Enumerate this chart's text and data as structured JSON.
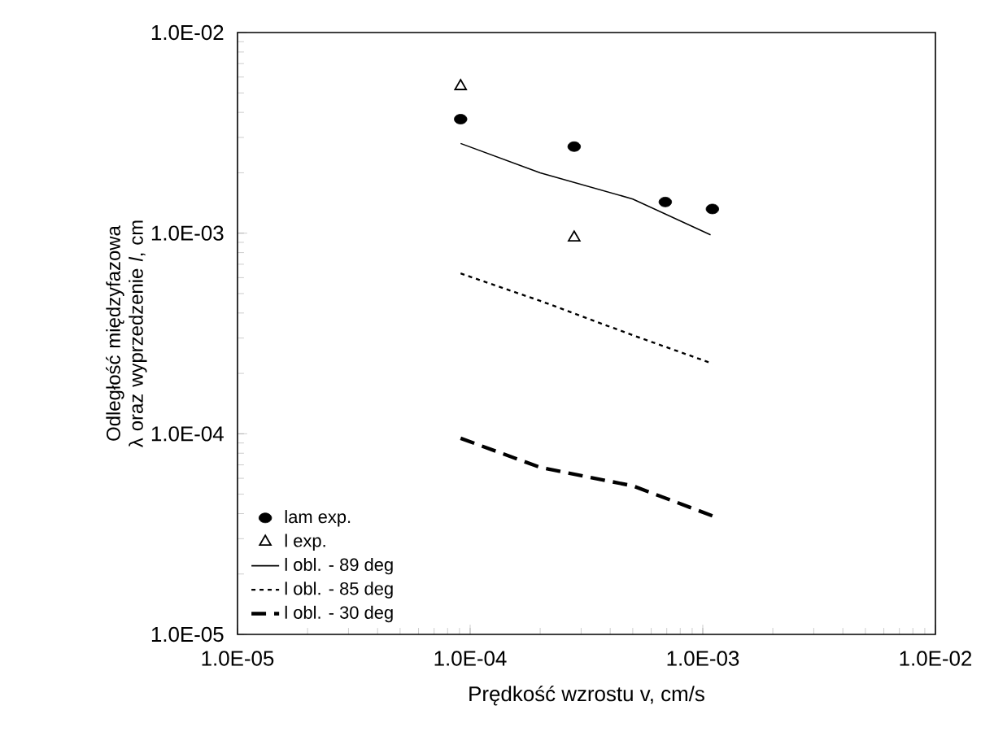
{
  "chart_data": {
    "type": "line",
    "xlabel": "Prędkość wzrostu v, cm/s",
    "ylabel": "Odległość międzyfazowa λ oraz wyprzedzenie *l*, cm",
    "log": "xy",
    "grid": false,
    "legend": "bottom left",
    "xlim": [
      1e-05,
      0.01
    ],
    "ylim": [
      1e-05,
      0.01
    ],
    "xticks": [
      {
        "value": 1e-05,
        "label": "1.0E-05"
      },
      {
        "value": 0.0001,
        "label": "1.0E-04"
      },
      {
        "value": 0.001,
        "label": "1.0E-03"
      },
      {
        "value": 0.01,
        "label": "1.0E-02"
      }
    ],
    "yticks": [
      {
        "value": 1e-05,
        "label": "1.0E-05"
      },
      {
        "value": 0.0001,
        "label": "1.0E-04"
      },
      {
        "value": 0.001,
        "label": "1.0E-03"
      },
      {
        "value": 0.01,
        "label": "1.0E-02"
      }
    ],
    "series": [
      {
        "name": "lam exp.",
        "type": "scatter",
        "marker": "circle",
        "color": "#000000",
        "x": [
          9.1e-05,
          0.00028,
          0.00069,
          0.0011
        ],
        "values": [
          0.0037,
          0.0027,
          0.00143,
          0.00132
        ]
      },
      {
        "name": "l exp.",
        "type": "scatter",
        "marker": "triangle",
        "color": "#000000",
        "x": [
          9.1e-05,
          0.00028
        ],
        "values": [
          0.0054,
          0.00095
        ]
      },
      {
        "name": "l obl. - 89 deg",
        "type": "line",
        "line_style": "solid",
        "color": "#000000",
        "x": [
          9.1e-05,
          0.0002,
          0.0005,
          0.00108
        ],
        "values": [
          0.0028,
          0.002,
          0.00148,
          0.00098
        ]
      },
      {
        "name": "l obl. - 85 deg",
        "type": "line",
        "line_style": "dotted",
        "color": "#000000",
        "x": [
          9.1e-05,
          0.0002,
          0.0005,
          0.0011
        ],
        "values": [
          0.00063,
          0.00046,
          0.00031,
          0.000224
        ]
      },
      {
        "name": "l obl. - 30 deg",
        "type": "line",
        "line_style": "dashed",
        "color": "#000000",
        "x": [
          9.1e-05,
          0.0002,
          0.0005,
          0.0011
        ],
        "values": [
          9.5e-05,
          6.8e-05,
          5.5e-05,
          3.9e-05
        ]
      }
    ]
  }
}
